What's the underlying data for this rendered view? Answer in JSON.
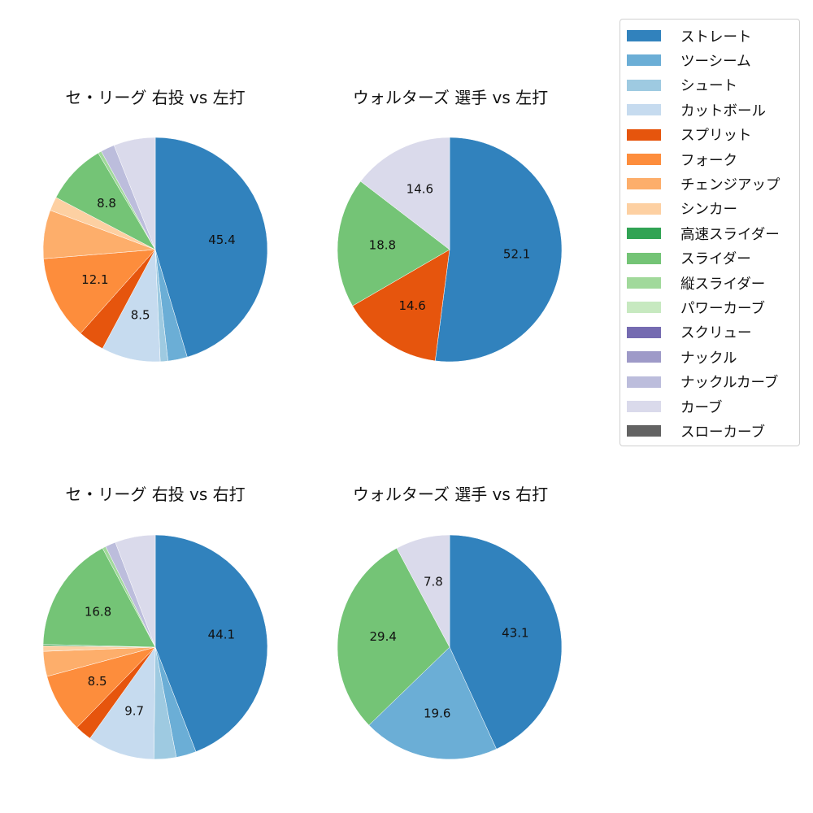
{
  "legend": {
    "items": [
      {
        "label": "ストレート",
        "color": "#3182bd"
      },
      {
        "label": "ツーシーム",
        "color": "#6baed6"
      },
      {
        "label": "シュート",
        "color": "#9ecae1"
      },
      {
        "label": "カットボール",
        "color": "#c6dbef"
      },
      {
        "label": "スプリット",
        "color": "#e6550d"
      },
      {
        "label": "フォーク",
        "color": "#fd8d3c"
      },
      {
        "label": "チェンジアップ",
        "color": "#fdae6b"
      },
      {
        "label": "シンカー",
        "color": "#fdd0a2"
      },
      {
        "label": "高速スライダー",
        "color": "#31a354"
      },
      {
        "label": "スライダー",
        "color": "#74c476"
      },
      {
        "label": "縦スライダー",
        "color": "#a1d99b"
      },
      {
        "label": "パワーカーブ",
        "color": "#c7e9c0"
      },
      {
        "label": "スクリュー",
        "color": "#756bb1"
      },
      {
        "label": "ナックル",
        "color": "#9e9ac8"
      },
      {
        "label": "ナックルカーブ",
        "color": "#bcbddc"
      },
      {
        "label": "カーブ",
        "color": "#dadaeb"
      },
      {
        "label": "スローカーブ",
        "color": "#636363"
      }
    ]
  },
  "chart_data": [
    {
      "type": "pie",
      "title": "セ・リーグ 右投 vs 左打",
      "categories": [
        "ストレート",
        "ツーシーム",
        "シュート",
        "カットボール",
        "スプリット",
        "フォーク",
        "チェンジアップ",
        "シンカー",
        "スライダー",
        "縦スライダー",
        "ナックルカーブ",
        "カーブ"
      ],
      "values": [
        45.4,
        2.8,
        1.1,
        8.5,
        3.8,
        12.1,
        7.0,
        2.0,
        8.8,
        0.5,
        2.0,
        6.0
      ],
      "labels_shown": [
        "45.4",
        "",
        "",
        "8.5",
        "",
        "12.1",
        "",
        "",
        "8.8",
        "",
        "",
        ""
      ],
      "start_angle": 90,
      "direction": "clockwise"
    },
    {
      "type": "pie",
      "title": "ウォルターズ 選手 vs 左打",
      "categories": [
        "ストレート",
        "スプリット",
        "スライダー",
        "カーブ"
      ],
      "values": [
        52.1,
        14.6,
        18.8,
        14.6
      ],
      "labels_shown": [
        "52.1",
        "14.6",
        "18.8",
        "14.6"
      ],
      "start_angle": 90,
      "direction": "clockwise"
    },
    {
      "type": "pie",
      "title": "セ・リーグ 右投 vs 右打",
      "categories": [
        "ストレート",
        "ツーシーム",
        "シュート",
        "カットボール",
        "スプリット",
        "フォーク",
        "チェンジアップ",
        "シンカー",
        "高速スライダー",
        "スライダー",
        "縦スライダー",
        "ナックルカーブ",
        "カーブ"
      ],
      "values": [
        44.1,
        2.9,
        3.2,
        9.7,
        2.4,
        8.5,
        3.6,
        0.8,
        0.2,
        16.8,
        0.5,
        1.5,
        5.8
      ],
      "labels_shown": [
        "44.1",
        "",
        "",
        "9.7",
        "",
        "8.5",
        "",
        "",
        "",
        "16.8",
        "",
        "",
        ""
      ],
      "start_angle": 90,
      "direction": "clockwise"
    },
    {
      "type": "pie",
      "title": "ウォルターズ 選手 vs 右打",
      "categories": [
        "ストレート",
        "ツーシーム",
        "スライダー",
        "カーブ"
      ],
      "values": [
        43.1,
        19.6,
        29.4,
        7.8
      ],
      "labels_shown": [
        "43.1",
        "19.6",
        "29.4",
        "7.8"
      ],
      "start_angle": 90,
      "direction": "clockwise"
    }
  ]
}
